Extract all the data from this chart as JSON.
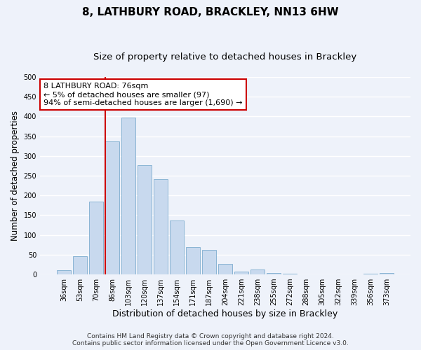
{
  "title": "8, LATHBURY ROAD, BRACKLEY, NN13 6HW",
  "subtitle": "Size of property relative to detached houses in Brackley",
  "xlabel": "Distribution of detached houses by size in Brackley",
  "ylabel": "Number of detached properties",
  "bar_labels": [
    "36sqm",
    "53sqm",
    "70sqm",
    "86sqm",
    "103sqm",
    "120sqm",
    "137sqm",
    "154sqm",
    "171sqm",
    "187sqm",
    "204sqm",
    "221sqm",
    "238sqm",
    "255sqm",
    "272sqm",
    "288sqm",
    "305sqm",
    "322sqm",
    "339sqm",
    "356sqm",
    "373sqm"
  ],
  "bar_values": [
    10,
    47,
    185,
    337,
    397,
    277,
    242,
    137,
    70,
    62,
    27,
    8,
    12,
    4,
    2,
    0,
    0,
    0,
    0,
    2,
    3
  ],
  "bar_color": "#c8d9ee",
  "bar_edge_color": "#8ab4d4",
  "marker_color": "#cc0000",
  "annotation_line1": "8 LATHBURY ROAD: 76sqm",
  "annotation_line2": "← 5% of detached houses are smaller (97)",
  "annotation_line3": "94% of semi-detached houses are larger (1,690) →",
  "annotation_box_color": "#ffffff",
  "annotation_box_edge": "#cc0000",
  "ylim": [
    0,
    500
  ],
  "yticks": [
    0,
    50,
    100,
    150,
    200,
    250,
    300,
    350,
    400,
    450,
    500
  ],
  "footer_text": "Contains HM Land Registry data © Crown copyright and database right 2024.\nContains public sector information licensed under the Open Government Licence v3.0.",
  "bg_color": "#eef2fa",
  "plot_bg_color": "#eef2fa",
  "grid_color": "#ffffff",
  "title_fontsize": 11,
  "subtitle_fontsize": 9.5,
  "xlabel_fontsize": 9,
  "ylabel_fontsize": 8.5,
  "tick_fontsize": 7,
  "annotation_fontsize": 8,
  "footer_fontsize": 6.5,
  "red_line_x": 2.57
}
